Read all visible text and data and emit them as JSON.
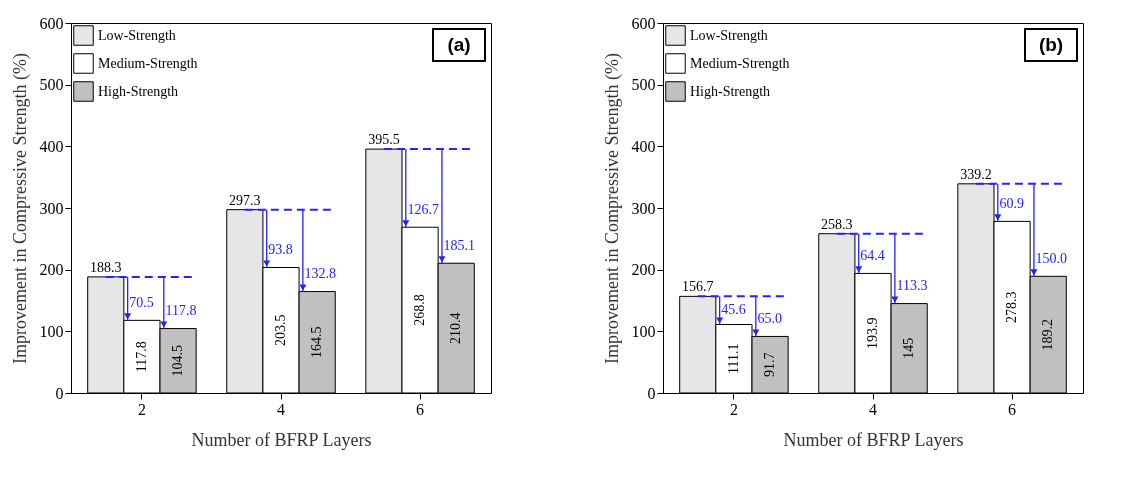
{
  "chart_data": [
    {
      "type": "bar",
      "title": "(a)",
      "xlabel": "Number of BFRP Layers",
      "ylabel": "Improvement in Compressive Strength (%)",
      "categories": [
        "2",
        "4",
        "6"
      ],
      "series": [
        {
          "name": "Low-Strength",
          "color": "#e6e6e6",
          "values": [
            188.3,
            297.3,
            395.5
          ],
          "value_labels": [
            "188.3",
            "297.3",
            "395.5"
          ]
        },
        {
          "name": "Medium-Strength",
          "color": "#ffffff",
          "values": [
            117.8,
            203.5,
            268.8
          ],
          "value_labels": [
            "117.8",
            "203.5",
            "268.8"
          ]
        },
        {
          "name": "High-Strength",
          "color": "#c0c0c0",
          "values": [
            104.5,
            164.5,
            210.4
          ],
          "value_labels": [
            "104.5",
            "164.5",
            "210.4"
          ]
        }
      ],
      "ylim": [
        0,
        600
      ],
      "yticks": [
        0,
        100,
        200,
        300,
        400,
        500,
        600
      ],
      "legend": "top left",
      "annotations": [
        {
          "text": "70.5",
          "x": "2",
          "y": 117.8
        },
        {
          "text": "117.8",
          "y": 104.5
        },
        {
          "text": "93.8",
          "x": "4",
          "y": 203.5
        },
        {
          "text": "132.8",
          "y": 164.5
        },
        {
          "text": "126.7",
          "x": "6",
          "y": 268.8
        },
        {
          "text": "185.1",
          "y": 210.4
        }
      ]
    },
    {
      "type": "bar",
      "title": "(b)",
      "xlabel": "Number of BFRP Layers",
      "ylabel": "Improvement in Compressive Strength (%)",
      "categories": [
        "2",
        "4",
        "6"
      ],
      "series": [
        {
          "name": "Low-Strength",
          "color": "#e6e6e6",
          "values": [
            156.7,
            258.3,
            339.2
          ],
          "value_labels": [
            "156.7",
            "258.3",
            "339.2"
          ]
        },
        {
          "name": "Medium-Strength",
          "color": "#ffffff",
          "values": [
            111.1,
            193.9,
            278.3
          ],
          "value_labels": [
            "111.1",
            "193.9",
            "278.3"
          ]
        },
        {
          "name": "High-Strength",
          "color": "#c0c0c0",
          "values": [
            91.7,
            145,
            189.2
          ],
          "value_labels": [
            "91.7",
            "145",
            "189.2"
          ]
        }
      ],
      "ylim": [
        0,
        600
      ],
      "yticks": [
        0,
        100,
        200,
        300,
        400,
        500,
        600
      ],
      "legend": "top left",
      "annotations": [
        {
          "text": "45.6",
          "x": "2",
          "y": 111.1
        },
        {
          "text": "65.0",
          "y": 91.7
        },
        {
          "text": "64.4",
          "x": "4",
          "y": 193.9
        },
        {
          "text": "113.3",
          "y": 145
        },
        {
          "text": "60.9",
          "x": "6",
          "y": 278.3
        },
        {
          "text": "150.0",
          "y": 189.2
        }
      ]
    }
  ]
}
